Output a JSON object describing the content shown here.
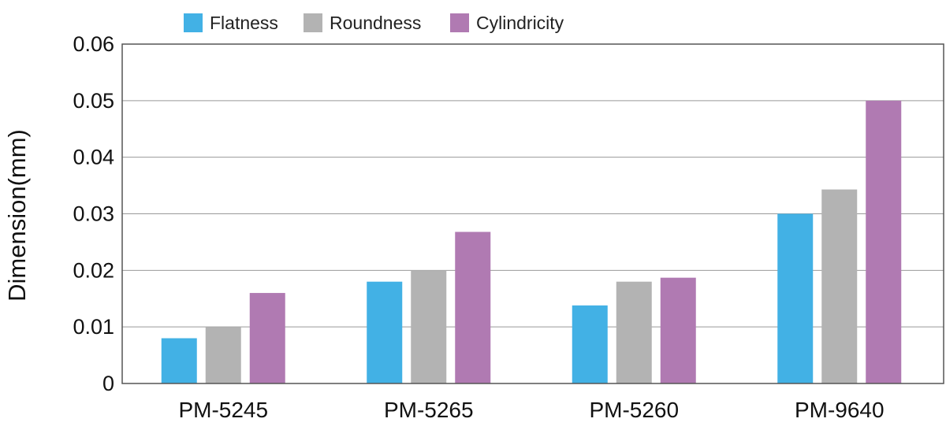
{
  "chart_data": {
    "type": "bar",
    "title": "",
    "xlabel": "",
    "ylabel": "Dimension(mm)",
    "categories": [
      "PM-5245",
      "PM-5265",
      "PM-5260",
      "PM-9640"
    ],
    "series": [
      {
        "name": "Flatness",
        "color": "#42b1e5",
        "values": [
          0.008,
          0.018,
          0.0138,
          0.03
        ]
      },
      {
        "name": "Roundness",
        "color": "#b3b3b3",
        "values": [
          0.01,
          0.02,
          0.018,
          0.0343
        ]
      },
      {
        "name": "Cylindricity",
        "color": "#b07ab2",
        "values": [
          0.016,
          0.0268,
          0.0187,
          0.05
        ]
      }
    ],
    "ylim": [
      0,
      0.06
    ],
    "yticks": [
      "0",
      "0.01",
      "0.02",
      "0.03",
      "0.04",
      "0.05",
      "0.06"
    ],
    "grid": true,
    "legend_position": "top-left"
  }
}
